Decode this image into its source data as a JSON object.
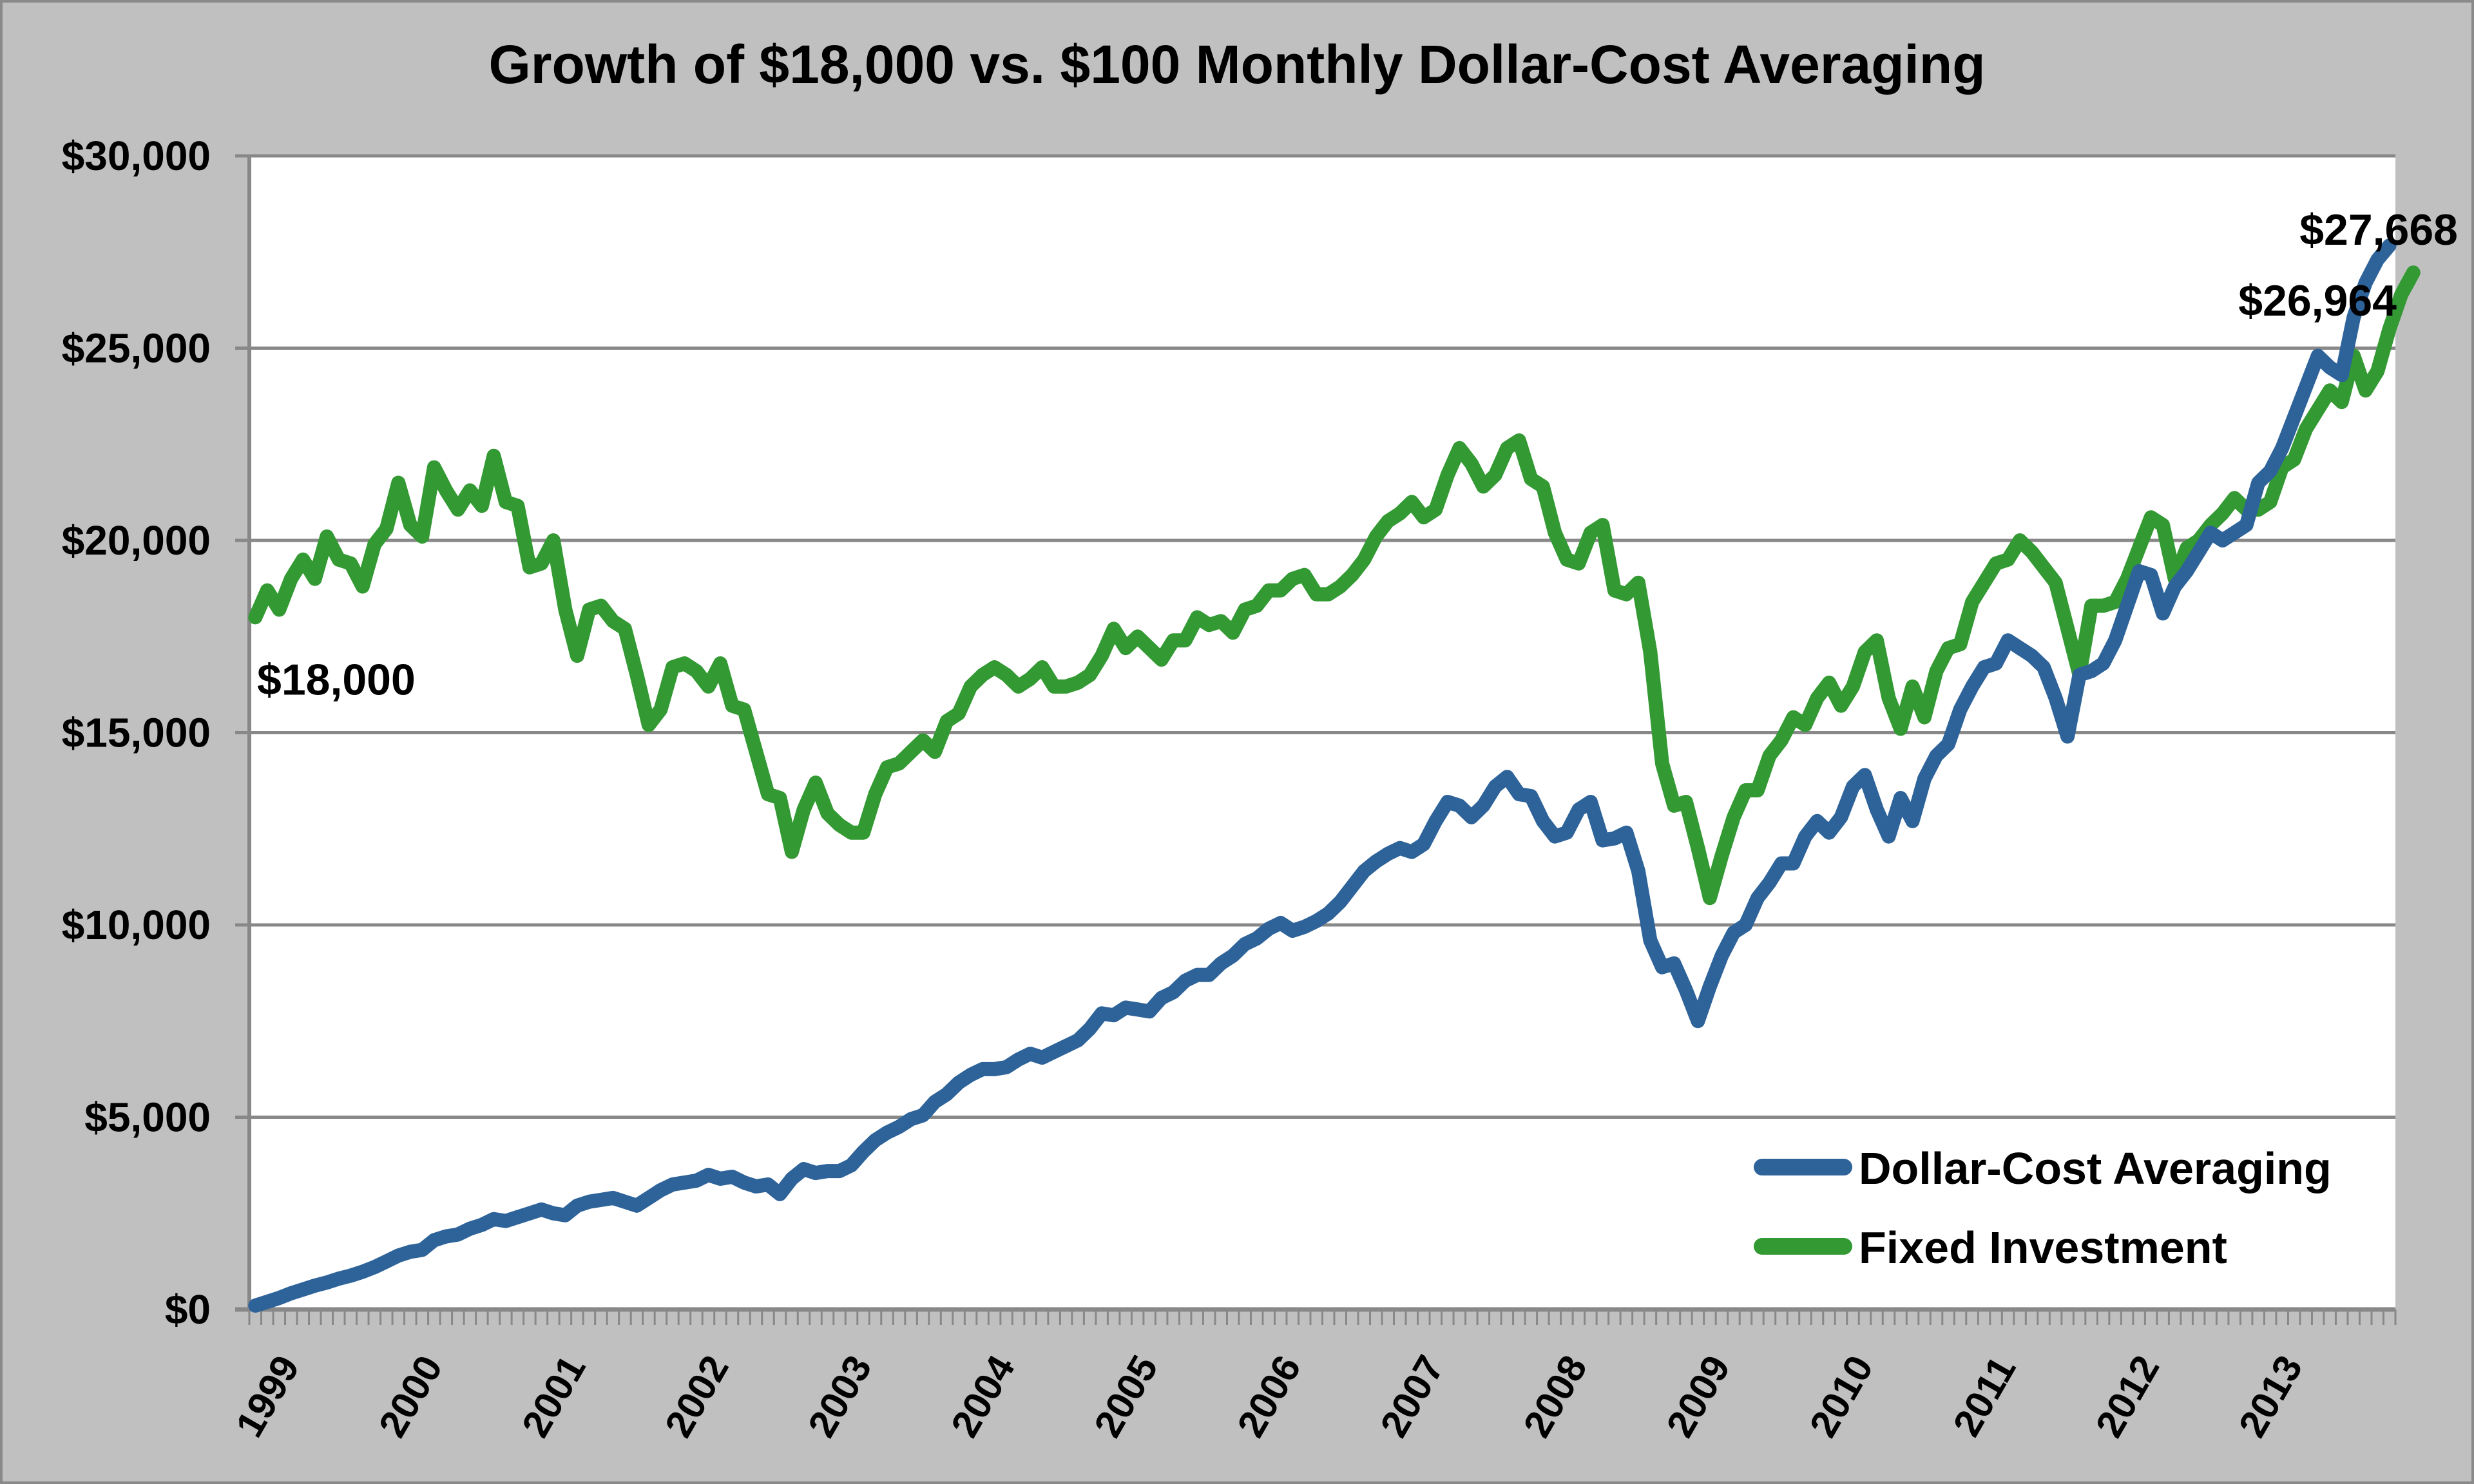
{
  "chart_data": {
    "type": "line",
    "title": "Growth of $18,000 vs. $100 Monthly Dollar-Cost Averaging",
    "xlabel": "",
    "ylabel": "",
    "ylim": [
      0,
      30000
    ],
    "yticks": [
      0,
      5000,
      10000,
      15000,
      20000,
      25000,
      30000
    ],
    "ytick_labels": [
      "$0",
      "$5,000",
      "$10,000",
      "$15,000",
      "$20,000",
      "$25,000",
      "$30,000"
    ],
    "xtick_labels": [
      "1999",
      "2000",
      "2001",
      "2002",
      "2003",
      "2004",
      "2005",
      "2006",
      "2007",
      "2008",
      "2009",
      "2010",
      "2011",
      "2012",
      "2013"
    ],
    "x_start_year": 1999,
    "x_frequency": "monthly",
    "grid": true,
    "legend_position": "bottom-right",
    "series": [
      {
        "name": "Dollar-Cost Averaging",
        "color": "#2e6399",
        "values": [
          100,
          200,
          300,
          420,
          520,
          620,
          700,
          800,
          880,
          980,
          1100,
          1250,
          1400,
          1500,
          1550,
          1800,
          1900,
          1950,
          2100,
          2200,
          2350,
          2300,
          2400,
          2500,
          2600,
          2500,
          2450,
          2700,
          2800,
          2850,
          2900,
          2800,
          2700,
          2900,
          3100,
          3250,
          3300,
          3350,
          3500,
          3400,
          3450,
          3300,
          3200,
          3250,
          3000,
          3400,
          3650,
          3550,
          3600,
          3600,
          3750,
          4100,
          4400,
          4600,
          4750,
          4950,
          5050,
          5400,
          5600,
          5900,
          6100,
          6250,
          6250,
          6300,
          6500,
          6650,
          6550,
          6700,
          6850,
          7000,
          7300,
          7700,
          7650,
          7850,
          7800,
          7750,
          8100,
          8250,
          8550,
          8700,
          8700,
          9000,
          9200,
          9500,
          9650,
          9900,
          10050,
          9850,
          9950,
          10100,
          10300,
          10600,
          11000,
          11400,
          11650,
          11850,
          12000,
          11900,
          12100,
          12700,
          13200,
          13100,
          12800,
          13100,
          13600,
          13850,
          13400,
          13350,
          12700,
          12300,
          12400,
          13000,
          13200,
          12200,
          12250,
          12400,
          11400,
          9600,
          8900,
          9000,
          8300,
          7500,
          8400,
          9200,
          9800,
          10000,
          10700,
          11100,
          11600,
          11600,
          12300,
          12700,
          12400,
          12800,
          13600,
          13900,
          13000,
          12300,
          13300,
          12700,
          13800,
          14400,
          14700,
          15600,
          16200,
          16700,
          16800,
          17400,
          17200,
          17000,
          16700,
          15900,
          14900,
          16500,
          16600,
          16800,
          17400,
          18300,
          19200,
          19100,
          18100,
          18800,
          19200,
          19700,
          20200,
          20000,
          20200,
          20400,
          21500,
          21800,
          22400,
          23200,
          24000,
          24800,
          24500,
          24300,
          25800,
          26700,
          27300,
          27668
        ]
      },
      {
        "name": "Fixed Investment",
        "color": "#339933",
        "values": [
          18000,
          18700,
          18200,
          19000,
          19500,
          19000,
          20100,
          19500,
          19400,
          18800,
          19900,
          20300,
          21500,
          20400,
          20100,
          21900,
          21300,
          20800,
          21300,
          20900,
          22200,
          21000,
          20900,
          19300,
          19400,
          20000,
          18200,
          17000,
          18200,
          18300,
          17900,
          17700,
          16500,
          15200,
          15600,
          16700,
          16800,
          16600,
          16200,
          16800,
          15700,
          15600,
          14500,
          13400,
          13300,
          11900,
          13000,
          13700,
          12900,
          12600,
          12400,
          12400,
          13400,
          14100,
          14200,
          14500,
          14800,
          14500,
          15300,
          15500,
          16200,
          16500,
          16700,
          16500,
          16200,
          16400,
          16700,
          16200,
          16200,
          16300,
          16500,
          17000,
          17700,
          17200,
          17500,
          17200,
          16900,
          17400,
          17400,
          18000,
          17800,
          17900,
          17600,
          18200,
          18300,
          18700,
          18700,
          19000,
          19100,
          18600,
          18600,
          18800,
          19100,
          19500,
          20100,
          20500,
          20700,
          21000,
          20600,
          20800,
          21700,
          22400,
          22000,
          21400,
          21700,
          22400,
          22600,
          21600,
          21400,
          20200,
          19500,
          19400,
          20200,
          20400,
          18700,
          18600,
          18900,
          17100,
          14200,
          13100,
          13200,
          12000,
          10700,
          11800,
          12800,
          13500,
          13500,
          14400,
          14800,
          15400,
          15200,
          15900,
          16300,
          15700,
          16200,
          17100,
          17400,
          15900,
          15100,
          16200,
          15400,
          16600,
          17200,
          17300,
          18400,
          18900,
          19400,
          19500,
          20000,
          19700,
          19300,
          18900,
          17700,
          16500,
          18300,
          18300,
          18400,
          19000,
          19800,
          20600,
          20400,
          19000,
          19800,
          20000,
          20400,
          20700,
          21100,
          20800,
          20800,
          21000,
          21900,
          22100,
          22900,
          23400,
          23900,
          23600,
          24800,
          23900,
          24400,
          25500,
          26400,
          26964
        ]
      }
    ],
    "annotations": [
      {
        "text": "$18,000",
        "series": "Fixed Investment",
        "position": "start"
      },
      {
        "text": "$27,668",
        "series": "Dollar-Cost Averaging",
        "position": "end"
      },
      {
        "text": "$26,964",
        "series": "Fixed Investment",
        "position": "end"
      }
    ]
  }
}
